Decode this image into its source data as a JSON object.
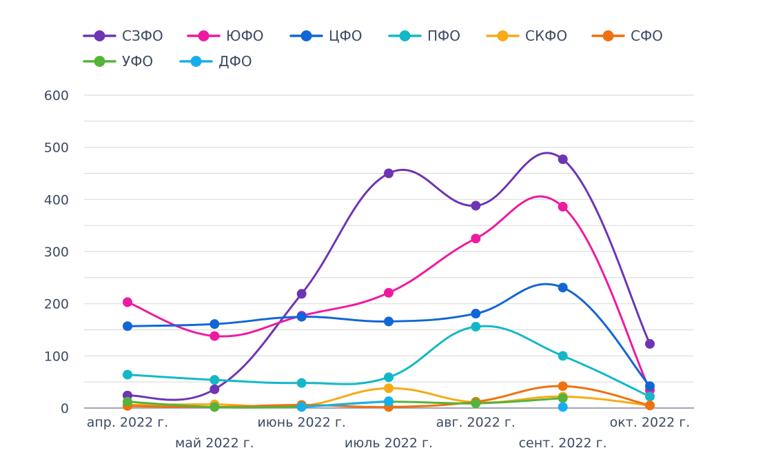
{
  "chart_data": {
    "type": "line",
    "title": "",
    "xlabel": "",
    "ylabel": "",
    "ylim": [
      0,
      600
    ],
    "yticks": [
      0,
      100,
      200,
      300,
      400,
      500,
      600
    ],
    "grid": true,
    "legend_position": "top",
    "categories": [
      "апр. 2022 г.",
      "май 2022 г.",
      "июнь 2022 г.",
      "июль 2022 г.",
      "авг. 2022 г.",
      "сент. 2022 г.",
      "окт. 2022 г."
    ],
    "series": [
      {
        "name": "СЗФО",
        "color": "#6d35b3",
        "values": [
          24,
          36,
          219,
          450,
          388,
          477,
          123
        ]
      },
      {
        "name": "ЮФО",
        "color": "#ee1aa0",
        "values": [
          203,
          138,
          177,
          221,
          325,
          386,
          34
        ]
      },
      {
        "name": "ЦФО",
        "color": "#1166d6",
        "values": [
          157,
          161,
          175,
          166,
          181,
          231,
          42
        ]
      },
      {
        "name": "ПФО",
        "color": "#13b8c8",
        "values": [
          64,
          54,
          48,
          59,
          156,
          100,
          22
        ]
      },
      {
        "name": "СКФО",
        "color": "#f7ab18",
        "values": [
          6,
          7,
          4,
          38,
          11,
          22,
          5
        ]
      },
      {
        "name": "СФО",
        "color": "#f0700f",
        "values": [
          4,
          2,
          6,
          2,
          12,
          42,
          5
        ]
      },
      {
        "name": "УФО",
        "color": "#55b33b",
        "values": [
          12,
          2,
          3,
          12,
          9,
          19,
          null
        ]
      },
      {
        "name": "ДФО",
        "color": "#17aef0",
        "values": [
          null,
          null,
          2,
          13,
          null,
          2,
          null
        ]
      }
    ]
  }
}
